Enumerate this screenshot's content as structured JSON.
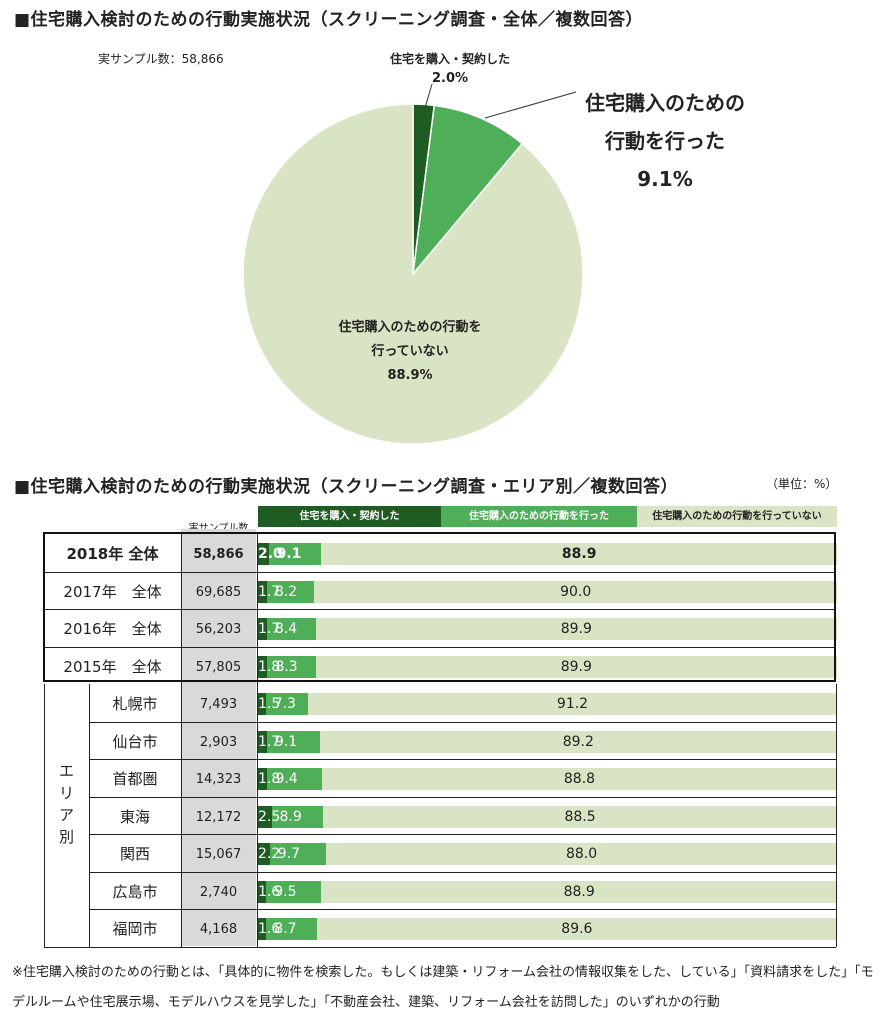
{
  "title_top": "■住宅購入検討のための行動実施状況（スクリーニング調査・全体／複数回答）",
  "sample_text": "実サンプル数：58,866",
  "pie": {
    "slices": [
      {
        "name_lines": [
          "住宅を購入・契約した"
        ],
        "pct_label": "2.0%",
        "value": 2.0,
        "color": "#1f5c22"
      },
      {
        "name_lines": [
          "住宅購入のための",
          "行動を行った"
        ],
        "pct_label": "9.1%",
        "value": 9.1,
        "color": "#4fae58"
      },
      {
        "name_lines": [
          "住宅購入のための行動を",
          "行っていない"
        ],
        "pct_label": "88.9%",
        "value": 88.9,
        "color": "#d8e4c4"
      }
    ]
  },
  "title_bottom": "■住宅購入検討のための行動実施状況（スクリーニング調査・エリア別／複数回答）",
  "unit": "（単位：%）",
  "legend": [
    "住宅を購入・契約した",
    "住宅購入のための行動を行った",
    "住宅購入のための行動を行っていない"
  ],
  "sample_header": "実サンプル数",
  "area_group_label": [
    "エ",
    "リ",
    "ア",
    "別"
  ],
  "chart_data": {
    "type": "bar",
    "stacked": true,
    "orientation": "horizontal",
    "categories": [
      "2018年 全体",
      "2017年　全体",
      "2016年　全体",
      "2015年　全体",
      "札幌市",
      "仙台市",
      "首都圏",
      "東海",
      "関西",
      "広島市",
      "福岡市"
    ],
    "samples": [
      "58,866",
      "69,685",
      "56,203",
      "57,805",
      "7,493",
      "2,903",
      "14,323",
      "12,172",
      "15,067",
      "2,740",
      "4,168"
    ],
    "series": [
      {
        "name": "住宅を購入・契約した",
        "labels": [
          "2.0",
          "1.7",
          "1.7",
          "1.8",
          "1.5",
          "1.7",
          "1.8",
          "2.5",
          "2.2",
          "1.6",
          "1.6"
        ],
        "values": [
          2.0,
          1.7,
          1.7,
          1.8,
          1.5,
          1.7,
          1.8,
          2.5,
          2.2,
          1.6,
          1.6
        ]
      },
      {
        "name": "住宅購入のための行動を行った",
        "labels": [
          "9.1",
          "8.2",
          "8.4",
          "8.3",
          "7.3",
          "9.1",
          "9.4",
          "8.9",
          "9.7",
          "9.5",
          "8.7"
        ],
        "values": [
          9.1,
          8.2,
          8.4,
          8.3,
          7.3,
          9.1,
          9.4,
          8.9,
          9.7,
          9.5,
          8.7
        ]
      },
      {
        "name": "住宅購入のための行動を行っていない",
        "labels": [
          "88.9",
          "90.0",
          "89.9",
          "89.9",
          "91.2",
          "89.2",
          "88.8",
          "88.5",
          "88.0",
          "88.9",
          "89.6"
        ],
        "values": [
          88.9,
          90.0,
          89.9,
          89.9,
          91.2,
          89.2,
          88.8,
          88.5,
          88.0,
          88.9,
          89.6
        ]
      }
    ],
    "colors": [
      "#1f5c22",
      "#4fae58",
      "#d8e4c4"
    ],
    "xlim": [
      0,
      100
    ]
  },
  "footnote": "※住宅購入検討のための行動とは、「具体的に物件を検索した。もしくは建築・リフォーム会社の情報収集をした、している」「資料請求をした」「モデルルームや住宅展示場、モデルハウスを見学した」「不動産会社、建築、リフォーム会社を訪問した」のいずれかの行動"
}
